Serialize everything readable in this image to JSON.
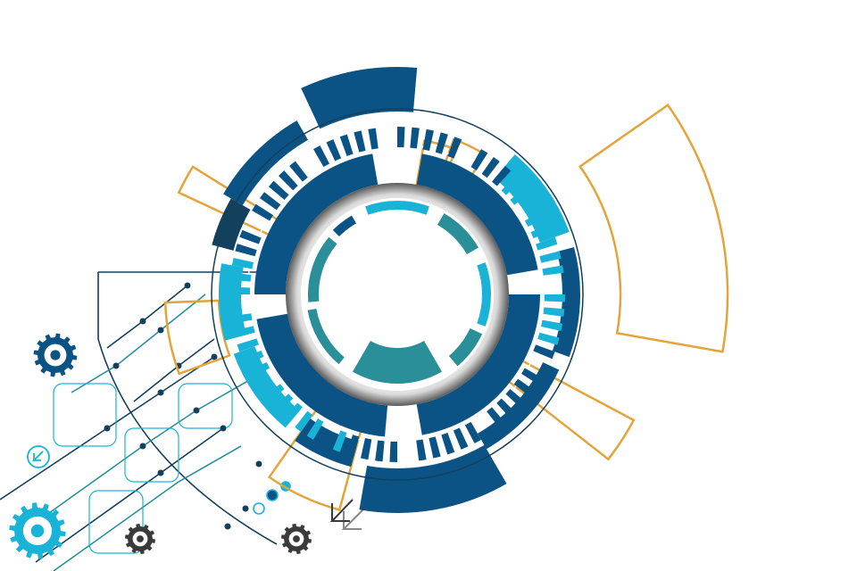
{
  "illustration": {
    "subject": "",
    "colors": {
      "navy": "#0b5384",
      "dark": "#13405c",
      "teal": "#2a8f99",
      "cyan": "#19b3d8",
      "orange": "#e3a53b",
      "gray": "#3a3a3a"
    },
    "icons": [
      "gear-icon",
      "arrow-icon",
      "circuit-node-icon"
    ]
  }
}
